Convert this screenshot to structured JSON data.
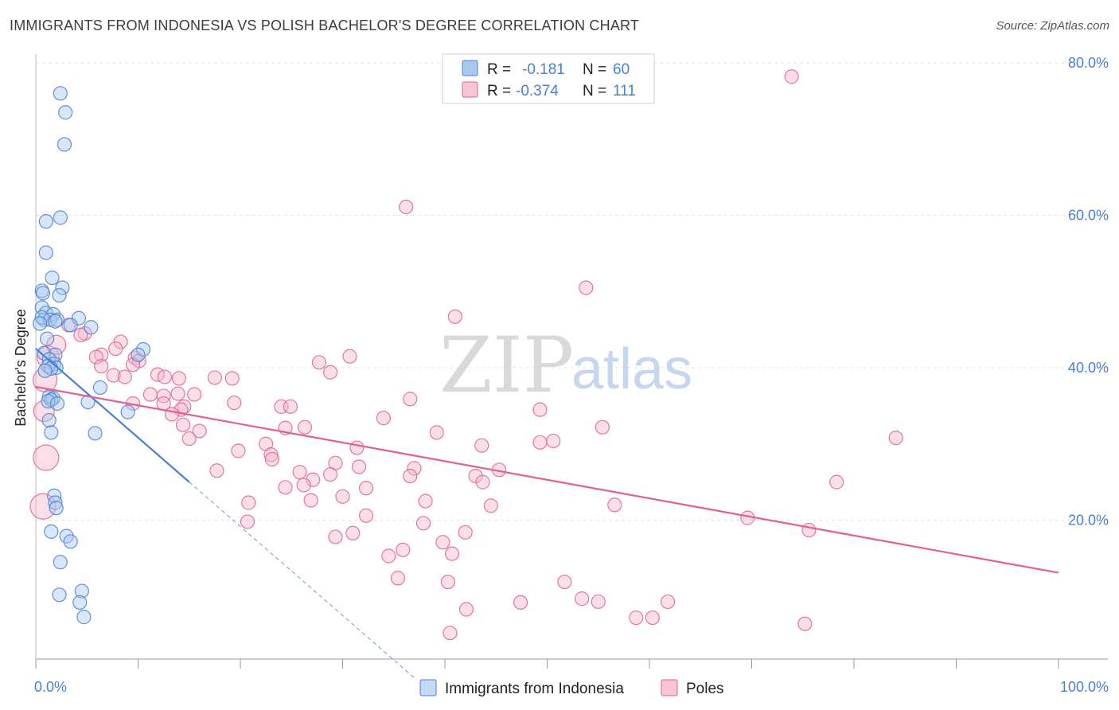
{
  "title": "IMMIGRANTS FROM INDONESIA VS POLISH BACHELOR'S DEGREE CORRELATION CHART",
  "source": "Source: ZipAtlas.com",
  "watermark": {
    "zip": "ZIP",
    "atlas": "atlas"
  },
  "colors": {
    "blue": "#4a7fd4",
    "blue_fill": "#a9c8f0",
    "pink": "#e0608f",
    "pink_fill": "#f4b8cc",
    "grid": "#e3e3e3"
  },
  "legend": {
    "rows": [
      {
        "r_label": "R =",
        "r_value": "-0.181",
        "n_label": "N =",
        "n_value": "60"
      },
      {
        "r_label": "R =",
        "r_value": "-0.374",
        "n_label": "N =",
        "n_value": "111"
      }
    ]
  },
  "chart_data": {
    "type": "scatter",
    "title": "IMMIGRANTS FROM INDONESIA VS POLISH BACHELOR'S DEGREE CORRELATION CHART",
    "xlabel": "",
    "ylabel": "Bachelor's Degree",
    "xlim": [
      0,
      100
    ],
    "ylim": [
      0,
      80
    ],
    "x_tick_labels": [
      "0.0%",
      "100.0%"
    ],
    "y_ticks": [
      20,
      40,
      60,
      80
    ],
    "y_tick_labels": [
      "20.0%",
      "40.0%",
      "60.0%",
      "80.0%"
    ],
    "grid": true,
    "series": [
      {
        "name": "Immigrants from Indonesia",
        "color": "#4a7fd4",
        "r": -0.181,
        "n": 60,
        "trend": {
          "x1": 0,
          "y1": 42.5,
          "x2": 15,
          "y2": 25,
          "dash_to_x": 37
        },
        "points": [
          [
            2.4,
            76
          ],
          [
            2.9,
            73.5
          ],
          [
            2.8,
            69.3
          ],
          [
            2.4,
            59.7
          ],
          [
            1.0,
            59.2
          ],
          [
            1.0,
            55.1
          ],
          [
            1.6,
            51.8
          ],
          [
            2.6,
            50.5
          ],
          [
            0.6,
            50.1
          ],
          [
            0.7,
            49.8
          ],
          [
            2.3,
            49.5
          ],
          [
            0.6,
            47.9
          ],
          [
            1.0,
            47.2
          ],
          [
            1.7,
            47.0
          ],
          [
            0.8,
            46.3
          ],
          [
            0.6,
            46.6
          ],
          [
            1.4,
            46.3
          ],
          [
            2.1,
            46.3
          ],
          [
            4.2,
            46.5
          ],
          [
            1.9,
            46.1
          ],
          [
            0.4,
            45.8
          ],
          [
            5.4,
            45.3
          ],
          [
            3.4,
            45.6
          ],
          [
            1.1,
            43.8
          ],
          [
            1.9,
            41.7
          ],
          [
            0.8,
            41.9
          ],
          [
            1.3,
            41.1
          ],
          [
            10.5,
            42.4
          ],
          [
            10.0,
            41.7
          ],
          [
            1.8,
            40.5
          ],
          [
            2.0,
            40.0
          ],
          [
            1.2,
            40.2
          ],
          [
            1.5,
            39.9
          ],
          [
            0.9,
            39.6
          ],
          [
            6.3,
            37.4
          ],
          [
            1.3,
            36.2
          ],
          [
            1.7,
            36.0
          ],
          [
            1.5,
            35.8
          ],
          [
            1.2,
            35.6
          ],
          [
            5.1,
            35.5
          ],
          [
            2.1,
            35.3
          ],
          [
            9.0,
            34.2
          ],
          [
            1.3,
            33.1
          ],
          [
            1.5,
            31.5
          ],
          [
            5.8,
            31.4
          ],
          [
            1.8,
            23.2
          ],
          [
            1.9,
            22.3
          ],
          [
            2.0,
            21.6
          ],
          [
            1.5,
            18.5
          ],
          [
            3.0,
            17.9
          ],
          [
            3.4,
            17.2
          ],
          [
            2.4,
            14.5
          ],
          [
            2.3,
            10.2
          ],
          [
            4.5,
            10.7
          ],
          [
            4.3,
            9.2
          ],
          [
            4.7,
            7.3
          ]
        ]
      },
      {
        "name": "Poles",
        "color": "#e0608f",
        "r": -0.374,
        "n": 111,
        "trend": {
          "x1": 0,
          "y1": 37.5,
          "x2": 100,
          "y2": 13.1
        },
        "points": [
          [
            73.9,
            78.2
          ],
          [
            36.2,
            61.1
          ],
          [
            53.8,
            50.5
          ],
          [
            41.0,
            46.7
          ],
          [
            3.2,
            45.6
          ],
          [
            4.8,
            44.5
          ],
          [
            4.4,
            44.3
          ],
          [
            8.3,
            43.4
          ],
          [
            7.8,
            42.5
          ],
          [
            6.4,
            41.7
          ],
          [
            30.7,
            41.5
          ],
          [
            5.9,
            41.4
          ],
          [
            9.7,
            41.3
          ],
          [
            10.1,
            40.9
          ],
          [
            6.4,
            40.2
          ],
          [
            27.7,
            40.7
          ],
          [
            9.5,
            40.4
          ],
          [
            28.8,
            39.4
          ],
          [
            11.9,
            39.1
          ],
          [
            12.6,
            38.8
          ],
          [
            17.5,
            38.7
          ],
          [
            7.6,
            39.0
          ],
          [
            19.2,
            38.6
          ],
          [
            14.0,
            38.6
          ],
          [
            8.7,
            38.8
          ],
          [
            11.2,
            36.5
          ],
          [
            12.5,
            36.3
          ],
          [
            13.9,
            36.6
          ],
          [
            15.5,
            36.5
          ],
          [
            9.5,
            35.3
          ],
          [
            19.4,
            35.4
          ],
          [
            12.5,
            35.3
          ],
          [
            14.5,
            34.9
          ],
          [
            24.0,
            34.9
          ],
          [
            24.9,
            34.9
          ],
          [
            36.6,
            35.9
          ],
          [
            49.3,
            34.5
          ],
          [
            14.2,
            34.5
          ],
          [
            13.3,
            33.9
          ],
          [
            34.0,
            33.4
          ],
          [
            14.4,
            32.5
          ],
          [
            15.0,
            30.7
          ],
          [
            16.0,
            31.7
          ],
          [
            24.4,
            32.1
          ],
          [
            26.3,
            32.2
          ],
          [
            39.2,
            31.5
          ],
          [
            55.4,
            32.2
          ],
          [
            22.5,
            30.0
          ],
          [
            49.3,
            30.2
          ],
          [
            50.6,
            30.4
          ],
          [
            43.6,
            29.8
          ],
          [
            31.4,
            29.5
          ],
          [
            19.8,
            29.1
          ],
          [
            23.0,
            28.6
          ],
          [
            23.1,
            28.0
          ],
          [
            84.1,
            30.8
          ],
          [
            29.3,
            27.5
          ],
          [
            31.6,
            27.0
          ],
          [
            37.0,
            26.8
          ],
          [
            17.7,
            26.5
          ],
          [
            25.8,
            26.3
          ],
          [
            28.8,
            26.0
          ],
          [
            45.3,
            26.6
          ],
          [
            36.6,
            25.8
          ],
          [
            43.0,
            25.8
          ],
          [
            27.1,
            25.3
          ],
          [
            26.2,
            24.6
          ],
          [
            43.7,
            25.0
          ],
          [
            78.3,
            25.0
          ],
          [
            24.4,
            24.3
          ],
          [
            32.3,
            24.2
          ],
          [
            30.0,
            23.1
          ],
          [
            20.8,
            22.3
          ],
          [
            26.9,
            22.6
          ],
          [
            38.1,
            22.5
          ],
          [
            44.5,
            21.9
          ],
          [
            56.6,
            22.0
          ],
          [
            32.3,
            20.6
          ],
          [
            69.6,
            20.3
          ],
          [
            20.7,
            19.8
          ],
          [
            37.9,
            19.6
          ],
          [
            75.6,
            18.7
          ],
          [
            42.0,
            18.4
          ],
          [
            31.0,
            18.3
          ],
          [
            29.3,
            17.8
          ],
          [
            39.8,
            17.1
          ],
          [
            35.9,
            16.1
          ],
          [
            40.7,
            15.6
          ],
          [
            34.5,
            15.3
          ],
          [
            35.4,
            12.4
          ],
          [
            40.3,
            11.9
          ],
          [
            51.7,
            11.9
          ],
          [
            53.4,
            9.7
          ],
          [
            55.0,
            9.3
          ],
          [
            47.4,
            9.2
          ],
          [
            61.8,
            9.3
          ],
          [
            58.7,
            7.2
          ],
          [
            60.3,
            7.2
          ],
          [
            75.2,
            6.4
          ],
          [
            42.1,
            8.3
          ],
          [
            40.5,
            5.2
          ],
          [
            1.2,
            41.4
          ],
          [
            2.0,
            43.0
          ],
          [
            0.9,
            38.4
          ],
          [
            0.8,
            34.3
          ],
          [
            1.0,
            28.2
          ],
          [
            0.7,
            21.8
          ]
        ]
      }
    ]
  },
  "bottom_legend": {
    "items": [
      {
        "label": "Immigrants from Indonesia"
      },
      {
        "label": "Poles"
      }
    ]
  }
}
